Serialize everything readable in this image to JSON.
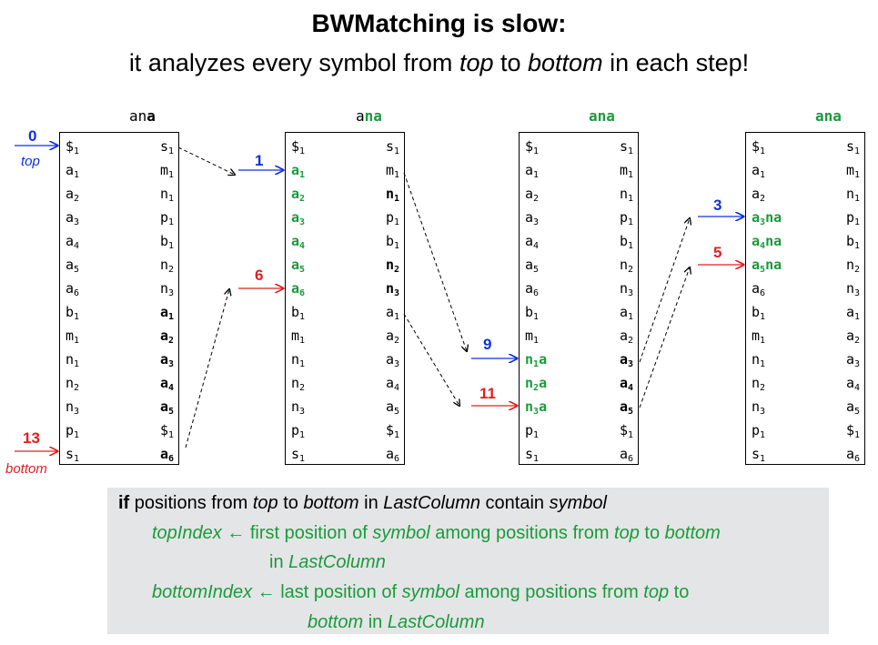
{
  "title": {
    "line1": "BWMatching is slow:",
    "line2_pre": "it analyzes every symbol from ",
    "line2_top": "top",
    "line2_mid": " to ",
    "line2_bottom": "bottom",
    "line2_post": " in each step!"
  },
  "headers": [
    {
      "plain": "an",
      "bold": "a",
      "green": ""
    },
    {
      "plain": "a",
      "bold": "",
      "green": "na"
    },
    {
      "plain": "",
      "bold": "",
      "green": "ana"
    },
    {
      "plain": "",
      "bold": "",
      "green": "ana"
    }
  ],
  "first_column": [
    {
      "s": "$",
      "i": "1"
    },
    {
      "s": "a",
      "i": "1"
    },
    {
      "s": "a",
      "i": "2"
    },
    {
      "s": "a",
      "i": "3"
    },
    {
      "s": "a",
      "i": "4"
    },
    {
      "s": "a",
      "i": "5"
    },
    {
      "s": "a",
      "i": "6"
    },
    {
      "s": "b",
      "i": "1"
    },
    {
      "s": "m",
      "i": "1"
    },
    {
      "s": "n",
      "i": "1"
    },
    {
      "s": "n",
      "i": "2"
    },
    {
      "s": "n",
      "i": "3"
    },
    {
      "s": "p",
      "i": "1"
    },
    {
      "s": "s",
      "i": "1"
    }
  ],
  "last_column": [
    {
      "s": "s",
      "i": "1"
    },
    {
      "s": "m",
      "i": "1"
    },
    {
      "s": "n",
      "i": "1"
    },
    {
      "s": "p",
      "i": "1"
    },
    {
      "s": "b",
      "i": "1"
    },
    {
      "s": "n",
      "i": "2"
    },
    {
      "s": "n",
      "i": "3"
    },
    {
      "s": "a",
      "i": "1"
    },
    {
      "s": "a",
      "i": "2"
    },
    {
      "s": "a",
      "i": "3"
    },
    {
      "s": "a",
      "i": "4"
    },
    {
      "s": "a",
      "i": "5"
    },
    {
      "s": "$",
      "i": "1"
    },
    {
      "s": "a",
      "i": "6"
    }
  ],
  "tables": [
    {
      "first_green": [],
      "first_suffix": "",
      "last_bold": [
        7,
        8,
        9,
        10,
        11,
        13
      ]
    },
    {
      "first_green": [
        1,
        2,
        3,
        4,
        5,
        6
      ],
      "first_suffix": "",
      "last_bold": [
        2,
        5,
        6
      ]
    },
    {
      "first_green": [
        9,
        10,
        11
      ],
      "first_suffix": "a",
      "last_bold": [
        9,
        10,
        11
      ]
    },
    {
      "first_green": [
        3,
        4,
        5
      ],
      "first_suffix": "na",
      "last_bold": []
    }
  ],
  "pointers": {
    "t0_top": "0",
    "t0_bottom": "13",
    "t1_top": "1",
    "t1_bottom": "6",
    "t2_top": "9",
    "t2_bottom": "11",
    "t3_top": "3",
    "t3_bottom": "5",
    "top_label": "top",
    "bottom_label": "bottom"
  },
  "pseudocode": {
    "l1_kw": "if",
    "l1_a": " positions from ",
    "l1_top": "top",
    "l1_b": " to ",
    "l1_bottom": "bottom",
    "l1_c": " in ",
    "l1_lc": "LastColumn",
    "l1_d": " contain ",
    "l1_sym": "symbol",
    "l2_var": "topIndex",
    "l2_a": " ← first position of ",
    "l2_sym": "symbol",
    "l2_b": " among positions from ",
    "l2_top": "top",
    "l2_c": " to ",
    "l2_bottom": "bottom",
    "l3_a": "in ",
    "l3_lc": "LastColumn",
    "l4_var": "bottomIndex",
    "l4_a": " ← last position of ",
    "l4_sym": "symbol",
    "l4_b": " among positions from ",
    "l4_top": "top",
    "l4_c": " to",
    "l5_bottom": "bottom",
    "l5_a": " in ",
    "l5_lc": "LastColumn"
  }
}
